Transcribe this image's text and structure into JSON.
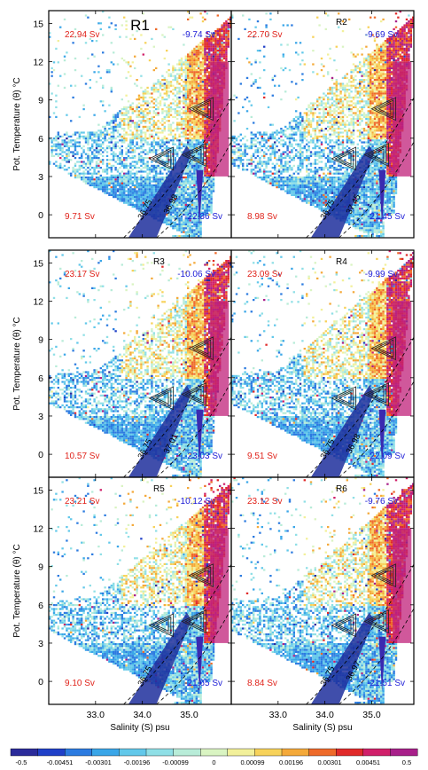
{
  "colors": {
    "positive_text": "#e0221a",
    "negative_text": "#1a1ad6",
    "colormap": [
      "#2b2b9a",
      "#2040c8",
      "#2c7be0",
      "#3aa6e8",
      "#62c8ea",
      "#8fdfe6",
      "#b8ecd8",
      "#d9f4c2",
      "#f2f09a",
      "#f7d25a",
      "#f4a93a",
      "#ee6a2a",
      "#e02a2a",
      "#d0206a",
      "#a8208a"
    ]
  },
  "chart_data": {
    "type": "heatmap",
    "xlabel": "Salinity (S) psu",
    "ylabel": "Pot. Temperature (θ) °C",
    "x_ticks": [
      "33.0",
      "34.0",
      "35.0"
    ],
    "y_ticks": [
      "0",
      "3",
      "6",
      "9",
      "12",
      "15"
    ],
    "xlim": [
      32.0,
      35.9
    ],
    "ylim": [
      -1.8,
      16.0
    ],
    "colorbar": {
      "labels": [
        "-0.5",
        "-0.00451",
        "-0.00301",
        "-0.00196",
        "-0.00099",
        "0",
        "0.00099",
        "0.00196",
        "0.00301",
        "0.00451",
        "0.5"
      ]
    },
    "contours": [
      "36.75",
      "36.97",
      "37.01",
      "36.98",
      "37.45"
    ],
    "panels": [
      {
        "id": "R1",
        "title": "R1",
        "top_left": "22.94 Sv",
        "top_right": "-9.74 Sv",
        "bottom_left": "9.71 Sv",
        "bottom_right": "-22.36 Sv",
        "contour_labels": [
          "36.75",
          "36.98"
        ]
      },
      {
        "id": "R2",
        "title": "R2",
        "top_left": "22.70 Sv",
        "top_right": "-9.69 Sv",
        "bottom_left": "8.98 Sv",
        "bottom_right": "-21.45 Sv",
        "contour_labels": [
          "36.75",
          "37.45"
        ]
      },
      {
        "id": "R3",
        "title": "R3",
        "top_left": "23.17 Sv",
        "top_right": "-10.06 Sv",
        "bottom_left": "10.57 Sv",
        "bottom_right": "-23.03 Sv",
        "contour_labels": [
          "36.75",
          "37.01"
        ]
      },
      {
        "id": "R4",
        "title": "R4",
        "top_left": "23.09 Sv",
        "top_right": "-9.99 Sv",
        "bottom_left": "9.51 Sv",
        "bottom_right": "-22.09 Sv",
        "contour_labels": [
          "36.75",
          "36.98"
        ]
      },
      {
        "id": "R5",
        "title": "R5",
        "top_left": "23.21 Sv",
        "top_right": "-10.12 Sv",
        "bottom_left": "9.10 Sv",
        "bottom_right": "-21.65 Sv",
        "contour_labels": [
          "36.75"
        ]
      },
      {
        "id": "R6",
        "title": "R6",
        "top_left": "23.12 Sv",
        "top_right": "-9.76 Sv",
        "bottom_left": "8.84 Sv",
        "bottom_right": "-21.51 Sv",
        "contour_labels": [
          "36.75",
          "36.97"
        ]
      }
    ]
  }
}
